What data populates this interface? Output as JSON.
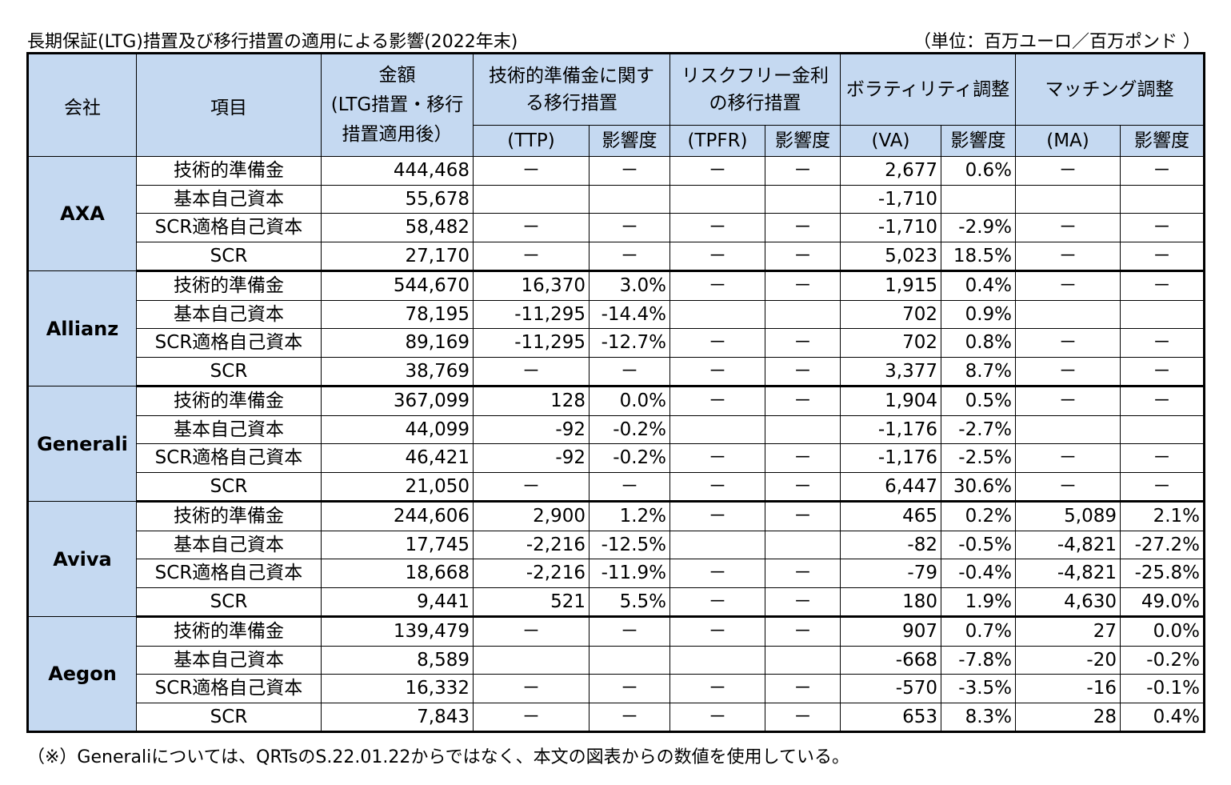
{
  "title": "長期保証(LTG)措置及び移行措置の適用による影響(2022年末)",
  "unit": "（単位：百万ユーロ／百万ポンド ）",
  "note": "（※）Generaliについては、QRTsのS.22.01.22からではなく、本文の図表からの数値を使用している。",
  "headers": {
    "company": "会社",
    "item": "項目",
    "amount_line1": "金額",
    "amount_line2": "(LTG措置・移行",
    "amount_line3": "措置適用後）",
    "ttp_line1": "技術的準備金に関す",
    "ttp_line2": "る移行措置",
    "tpfr_line1": "リスクフリー金利",
    "tpfr_line2": "の移行措置",
    "va": "ボラティリティ調整",
    "ma": "マッチング調整",
    "ttp_sub": "(TTP)",
    "tpfr_sub": "(TPFR)",
    "va_sub": "(VA)",
    "ma_sub": "(MA)",
    "impact": "影響度"
  },
  "items": [
    "技術的準備金",
    "基本自己資本",
    "SCR適格自己資本",
    "SCR"
  ],
  "groups": [
    {
      "company": "AXA",
      "rows": [
        [
          "444,468",
          "－",
          "－",
          "－",
          "－",
          "2,677",
          "0.6%",
          "－",
          "－"
        ],
        [
          "55,678",
          "",
          "",
          "",
          "",
          "-1,710",
          "",
          "",
          ""
        ],
        [
          "58,482",
          "－",
          "－",
          "－",
          "－",
          "-1,710",
          "-2.9%",
          "－",
          "－"
        ],
        [
          "27,170",
          "－",
          "－",
          "－",
          "－",
          "5,023",
          "18.5%",
          "－",
          "－"
        ]
      ]
    },
    {
      "company": "Allianz",
      "rows": [
        [
          "544,670",
          "16,370",
          "3.0%",
          "－",
          "－",
          "1,915",
          "0.4%",
          "－",
          "－"
        ],
        [
          "78,195",
          "-11,295",
          "-14.4%",
          "",
          "",
          "702",
          "0.9%",
          "",
          ""
        ],
        [
          "89,169",
          "-11,295",
          "-12.7%",
          "－",
          "－",
          "702",
          "0.8%",
          "－",
          "－"
        ],
        [
          "38,769",
          "－",
          "－",
          "－",
          "－",
          "3,377",
          "8.7%",
          "－",
          "－"
        ]
      ]
    },
    {
      "company": "Generali",
      "rows": [
        [
          "367,099",
          "128",
          "0.0%",
          "－",
          "－",
          "1,904",
          "0.5%",
          "－",
          "－"
        ],
        [
          "44,099",
          "-92",
          "-0.2%",
          "",
          "",
          "-1,176",
          "-2.7%",
          "",
          ""
        ],
        [
          "46,421",
          "-92",
          "-0.2%",
          "－",
          "－",
          "-1,176",
          "-2.5%",
          "－",
          "－"
        ],
        [
          "21,050",
          "－",
          "－",
          "－",
          "－",
          "6,447",
          "30.6%",
          "－",
          "－"
        ]
      ]
    },
    {
      "company": "Aviva",
      "rows": [
        [
          "244,606",
          "2,900",
          "1.2%",
          "－",
          "－",
          "465",
          "0.2%",
          "5,089",
          "2.1%"
        ],
        [
          "17,745",
          "-2,216",
          "-12.5%",
          "",
          "",
          "-82",
          "-0.5%",
          "-4,821",
          "-27.2%"
        ],
        [
          "18,668",
          "-2,216",
          "-11.9%",
          "－",
          "－",
          "-79",
          "-0.4%",
          "-4,821",
          "-25.8%"
        ],
        [
          "9,441",
          "521",
          "5.5%",
          "－",
          "－",
          "180",
          "1.9%",
          "4,630",
          "49.0%"
        ]
      ]
    },
    {
      "company": "Aegon",
      "rows": [
        [
          "139,479",
          "－",
          "－",
          "－",
          "－",
          "907",
          "0.7%",
          "27",
          "0.0%"
        ],
        [
          "8,589",
          "",
          "",
          "",
          "",
          "-668",
          "-7.8%",
          "-20",
          "-0.2%"
        ],
        [
          "16,332",
          "－",
          "－",
          "－",
          "－",
          "-570",
          "-3.5%",
          "-16",
          "-0.1%"
        ],
        [
          "7,843",
          "－",
          "－",
          "－",
          "－",
          "653",
          "8.3%",
          "28",
          "0.4%"
        ]
      ]
    }
  ]
}
